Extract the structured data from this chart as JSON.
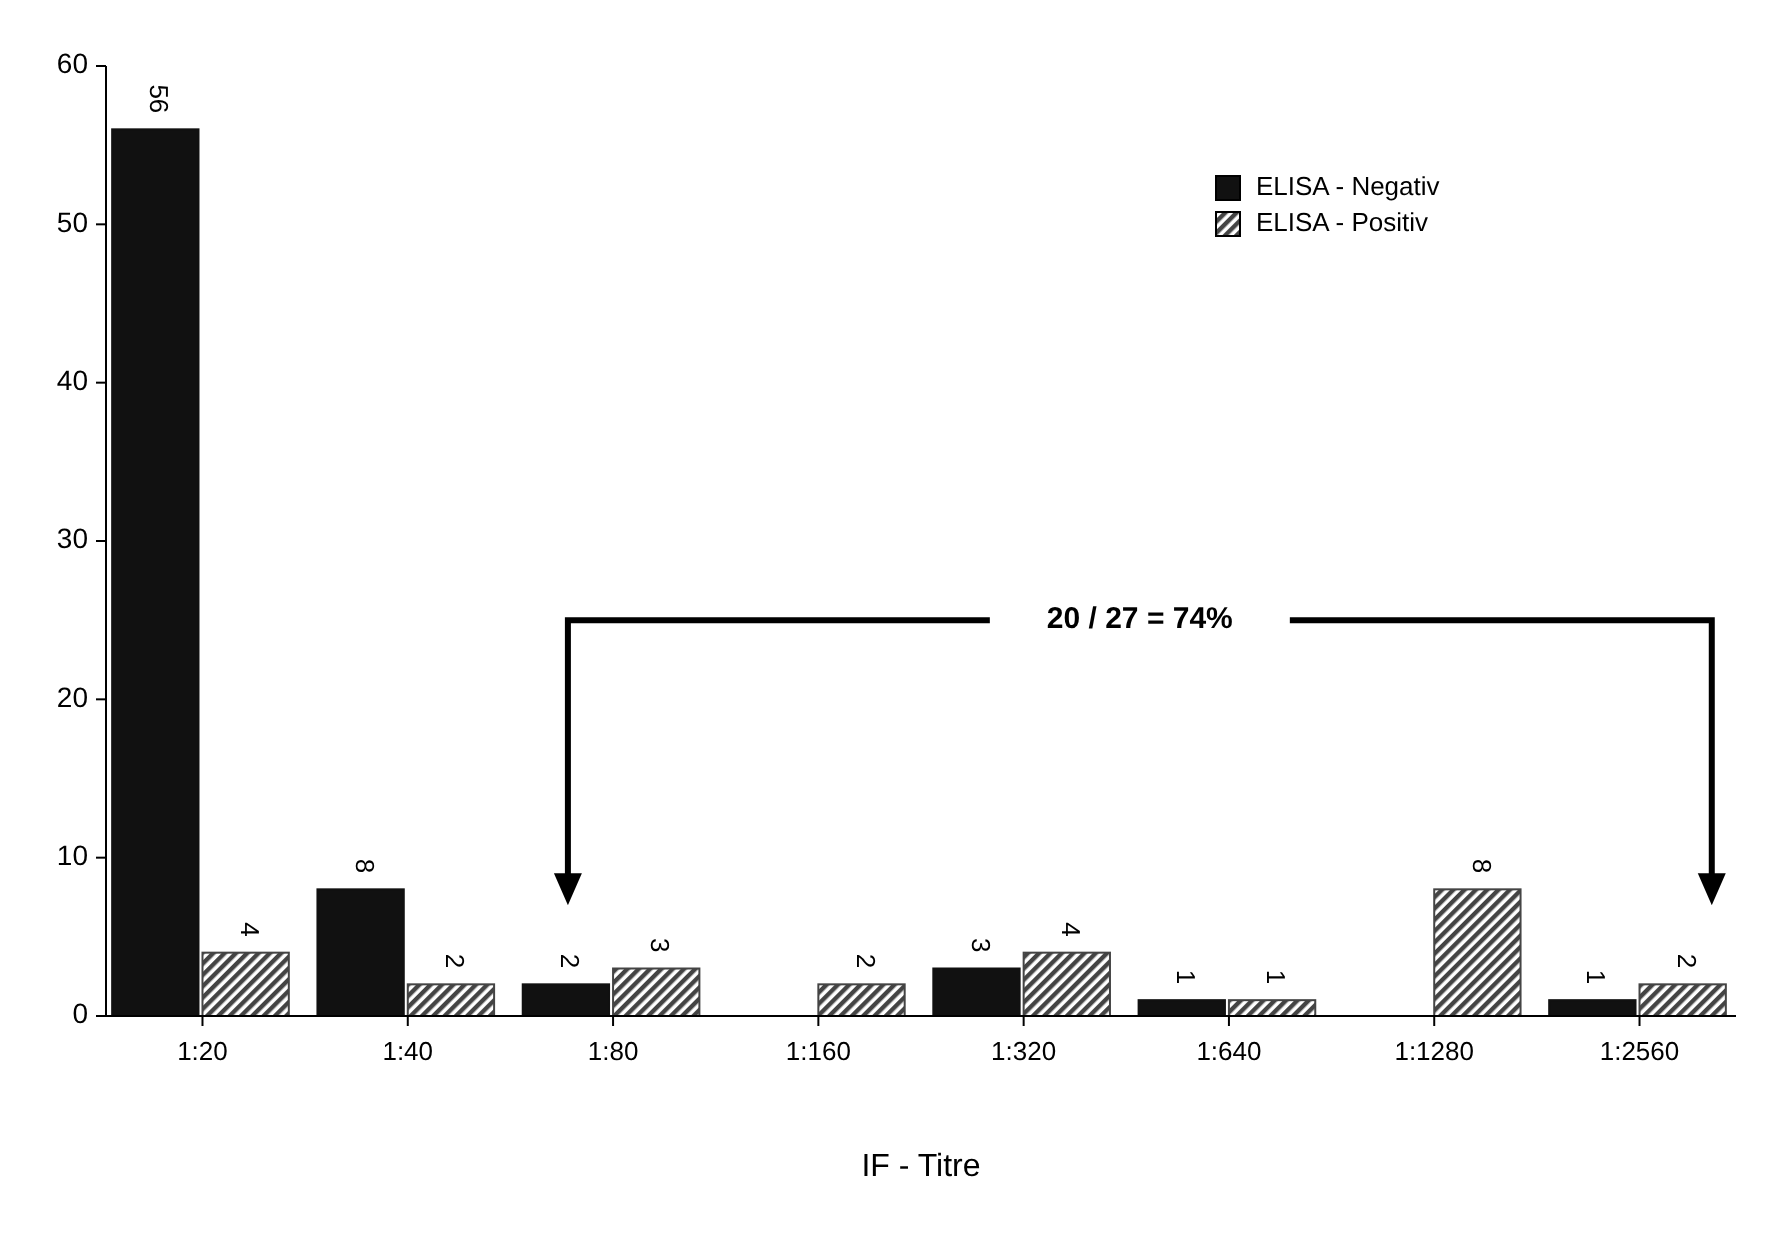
{
  "chart_data": {
    "type": "bar",
    "xlabel": "IF - Titre",
    "categories": [
      "1:20",
      "1:40",
      "1:80",
      "1:160",
      "1:320",
      "1:640",
      "1:1280",
      "1:2560"
    ],
    "series": [
      {
        "name": "ELISA - Negativ",
        "color": "#111111",
        "values": [
          56,
          8,
          2,
          null,
          3,
          1,
          null,
          1
        ]
      },
      {
        "name": "ELISA - Positiv",
        "color": "#444444",
        "values": [
          4,
          2,
          3,
          2,
          4,
          1,
          8,
          2
        ]
      }
    ],
    "ylim": [
      0,
      60
    ],
    "yticks": [
      0,
      10,
      20,
      30,
      40,
      50,
      60
    ],
    "grid": false,
    "legend": "top right",
    "data_labels": true,
    "annotations": [
      "20 / 27 = 74%"
    ]
  }
}
